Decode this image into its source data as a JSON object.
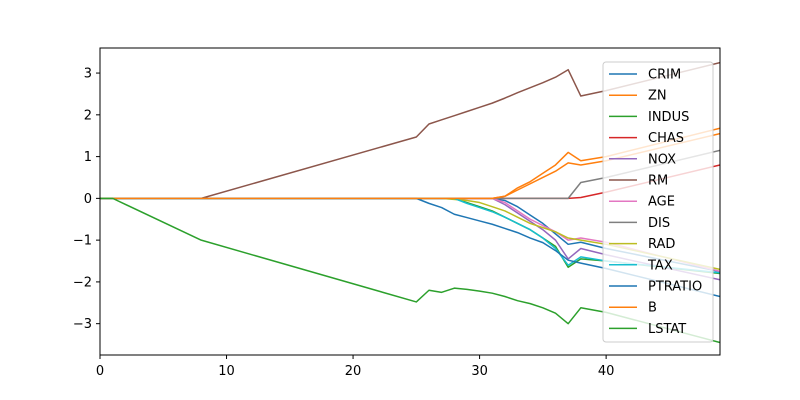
{
  "chart_data": {
    "type": "line",
    "title": "",
    "xlabel": "",
    "ylabel": "",
    "xlim": [
      0,
      49
    ],
    "ylim": [
      -3.75,
      3.6
    ],
    "xticks": [
      0,
      10,
      20,
      30,
      40
    ],
    "yticks": [
      -3,
      -2,
      -1,
      0,
      1,
      2,
      3
    ],
    "grid": false,
    "legend_position": "right",
    "series": [
      {
        "name": "CRIM",
        "color": "#1f77b4",
        "points": [
          [
            0,
            0
          ],
          [
            31,
            0
          ],
          [
            32,
            -0.05
          ],
          [
            33,
            -0.2
          ],
          [
            34,
            -0.4
          ],
          [
            35,
            -0.6
          ],
          [
            36,
            -0.85
          ],
          [
            37,
            -1.1
          ],
          [
            38,
            -1.05
          ],
          [
            40,
            -1.2
          ],
          [
            49,
            -1.75
          ]
        ]
      },
      {
        "name": "ZN",
        "color": "#ff7f0e",
        "points": [
          [
            0,
            0
          ],
          [
            31,
            0
          ],
          [
            32,
            0.05
          ],
          [
            33,
            0.2
          ],
          [
            34,
            0.35
          ],
          [
            35,
            0.5
          ],
          [
            36,
            0.65
          ],
          [
            37,
            0.85
          ],
          [
            38,
            0.8
          ],
          [
            40,
            0.9
          ],
          [
            49,
            1.55
          ]
        ]
      },
      {
        "name": "INDUS",
        "color": "#2ca02c",
        "points": [
          [
            0,
            0
          ],
          [
            28,
            0
          ],
          [
            29,
            -0.1
          ],
          [
            30,
            -0.2
          ],
          [
            31,
            -0.3
          ],
          [
            32,
            -0.45
          ],
          [
            33,
            -0.6
          ],
          [
            34,
            -0.75
          ],
          [
            35,
            -0.95
          ],
          [
            36,
            -1.15
          ],
          [
            37,
            -1.65
          ],
          [
            38,
            -1.45
          ],
          [
            40,
            -1.5
          ],
          [
            49,
            -1.8
          ]
        ]
      },
      {
        "name": "CHAS",
        "color": "#d62728",
        "points": [
          [
            0,
            0
          ],
          [
            37,
            0
          ],
          [
            38,
            0.02
          ],
          [
            40,
            0.15
          ],
          [
            49,
            0.8
          ]
        ]
      },
      {
        "name": "NOX",
        "color": "#9467bd",
        "points": [
          [
            0,
            0
          ],
          [
            31,
            0
          ],
          [
            32,
            -0.15
          ],
          [
            33,
            -0.35
          ],
          [
            34,
            -0.55
          ],
          [
            35,
            -0.75
          ],
          [
            36,
            -1.0
          ],
          [
            37,
            -1.45
          ],
          [
            38,
            -1.2
          ],
          [
            40,
            -1.35
          ],
          [
            49,
            -1.95
          ]
        ]
      },
      {
        "name": "RM",
        "color": "#8c564b",
        "points": [
          [
            0,
            0
          ],
          [
            8,
            0
          ],
          [
            25,
            1.47
          ],
          [
            26,
            1.78
          ],
          [
            27,
            1.88
          ],
          [
            28,
            1.98
          ],
          [
            29,
            2.08
          ],
          [
            30,
            2.18
          ],
          [
            31,
            2.28
          ],
          [
            32,
            2.4
          ],
          [
            33,
            2.53
          ],
          [
            34,
            2.65
          ],
          [
            35,
            2.77
          ],
          [
            36,
            2.9
          ],
          [
            37,
            3.08
          ],
          [
            38,
            2.45
          ],
          [
            40,
            2.58
          ],
          [
            49,
            3.25
          ]
        ]
      },
      {
        "name": "AGE",
        "color": "#e377c2",
        "points": [
          [
            0,
            0
          ],
          [
            31,
            0
          ],
          [
            32,
            -0.1
          ],
          [
            33,
            -0.3
          ],
          [
            34,
            -0.5
          ],
          [
            35,
            -0.65
          ],
          [
            36,
            -0.8
          ],
          [
            37,
            -1.0
          ],
          [
            38,
            -0.95
          ],
          [
            40,
            -1.05
          ],
          [
            49,
            -1.75
          ]
        ]
      },
      {
        "name": "DIS",
        "color": "#7f7f7f",
        "points": [
          [
            0,
            0
          ],
          [
            37,
            0
          ],
          [
            38,
            0.38
          ],
          [
            40,
            0.5
          ],
          [
            49,
            1.15
          ]
        ]
      },
      {
        "name": "RAD",
        "color": "#bcbd22",
        "points": [
          [
            0,
            0
          ],
          [
            27,
            0
          ],
          [
            29,
            -0.05
          ],
          [
            30,
            -0.1
          ],
          [
            31,
            -0.2
          ],
          [
            32,
            -0.3
          ],
          [
            33,
            -0.45
          ],
          [
            34,
            -0.6
          ],
          [
            35,
            -0.7
          ],
          [
            36,
            -0.8
          ],
          [
            37,
            -0.95
          ],
          [
            38,
            -1.0
          ],
          [
            40,
            -1.1
          ],
          [
            49,
            -1.7
          ]
        ]
      },
      {
        "name": "TAX",
        "color": "#17becf",
        "points": [
          [
            0,
            0
          ],
          [
            28,
            0
          ],
          [
            29,
            -0.12
          ],
          [
            30,
            -0.22
          ],
          [
            31,
            -0.32
          ],
          [
            32,
            -0.45
          ],
          [
            33,
            -0.6
          ],
          [
            34,
            -0.75
          ],
          [
            35,
            -0.95
          ],
          [
            36,
            -1.2
          ],
          [
            37,
            -1.6
          ],
          [
            38,
            -1.4
          ],
          [
            40,
            -1.5
          ],
          [
            49,
            -1.78
          ]
        ]
      },
      {
        "name": "PTRATIO",
        "color": "#1f77b4",
        "points": [
          [
            0,
            0
          ],
          [
            25,
            0
          ],
          [
            26,
            -0.12
          ],
          [
            27,
            -0.22
          ],
          [
            28,
            -0.38
          ],
          [
            29,
            -0.46
          ],
          [
            30,
            -0.54
          ],
          [
            31,
            -0.62
          ],
          [
            32,
            -0.72
          ],
          [
            33,
            -0.82
          ],
          [
            34,
            -0.95
          ],
          [
            35,
            -1.06
          ],
          [
            36,
            -1.25
          ],
          [
            37,
            -1.48
          ],
          [
            38,
            -1.55
          ],
          [
            40,
            -1.68
          ],
          [
            49,
            -2.35
          ]
        ]
      },
      {
        "name": "B",
        "color": "#ff7f0e",
        "points": [
          [
            0,
            0
          ],
          [
            31,
            0
          ],
          [
            32,
            0.05
          ],
          [
            33,
            0.25
          ],
          [
            34,
            0.4
          ],
          [
            35,
            0.6
          ],
          [
            36,
            0.8
          ],
          [
            37,
            1.1
          ],
          [
            38,
            0.9
          ],
          [
            40,
            1.0
          ],
          [
            49,
            1.68
          ]
        ]
      },
      {
        "name": "LSTAT",
        "color": "#2ca02c",
        "points": [
          [
            0,
            0
          ],
          [
            1,
            0
          ],
          [
            8,
            -1.0
          ],
          [
            25,
            -2.48
          ],
          [
            26,
            -2.2
          ],
          [
            27,
            -2.25
          ],
          [
            28,
            -2.15
          ],
          [
            29,
            -2.18
          ],
          [
            30,
            -2.22
          ],
          [
            31,
            -2.27
          ],
          [
            32,
            -2.35
          ],
          [
            33,
            -2.45
          ],
          [
            34,
            -2.52
          ],
          [
            35,
            -2.62
          ],
          [
            36,
            -2.75
          ],
          [
            37,
            -3.0
          ],
          [
            38,
            -2.62
          ],
          [
            40,
            -2.73
          ],
          [
            49,
            -3.45
          ]
        ]
      }
    ]
  }
}
